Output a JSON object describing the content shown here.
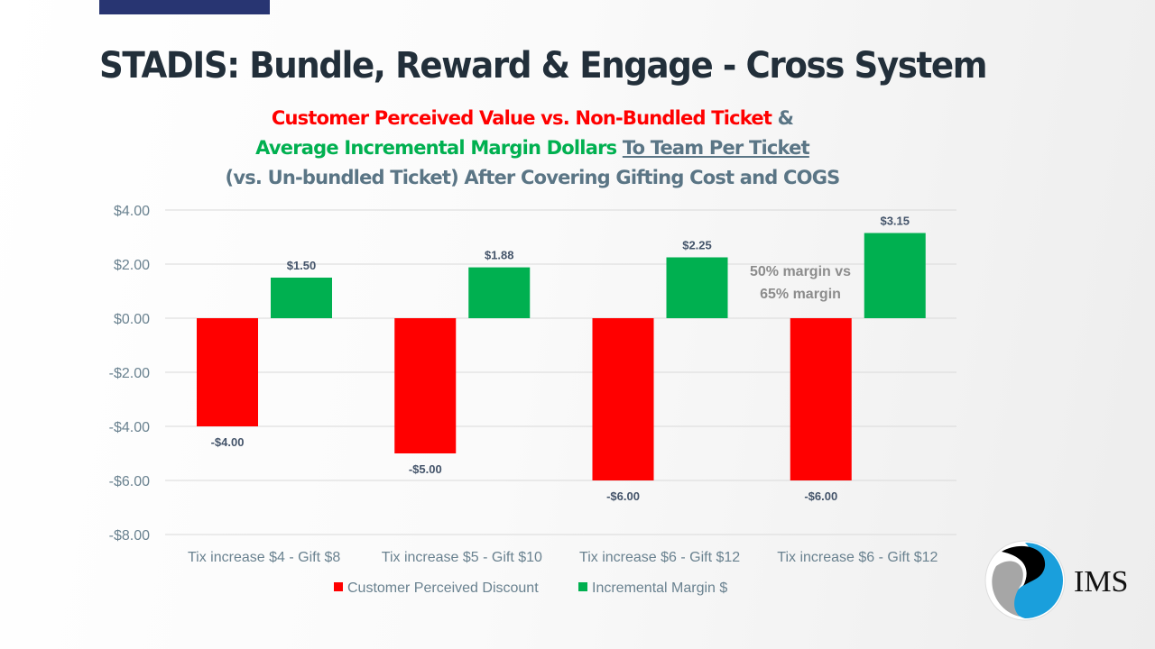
{
  "title": "STADIS: Bundle, Reward & Engage - Cross System",
  "subtitle": {
    "line1_red": "Customer Perceived Value vs. Non-Bundled Ticket",
    "line1_rest": " &",
    "line2_green": "Average Incremental Margin Dollars",
    "line2_underlined": "To Team Per Ticket",
    "line3": "(vs. Un-bundled Ticket) After Covering Gifting Cost and COGS"
  },
  "logo_text": "IMS",
  "chart_data": {
    "type": "bar",
    "categories": [
      "Tix increase $4 - Gift $8",
      "Tix increase $5 - Gift $10",
      "Tix increase $6 - Gift $12",
      "Tix increase $6 - Gift $12"
    ],
    "series": [
      {
        "name": "Customer Perceived Discount",
        "color": "#ff0000",
        "values": [
          -4.0,
          -5.0,
          -6.0,
          -6.0
        ],
        "labels": [
          "-$4.00",
          "-$5.00",
          "-$6.00",
          "-$6.00"
        ]
      },
      {
        "name": "Incremental Margin $",
        "color": "#00b050",
        "values": [
          1.5,
          1.88,
          2.25,
          3.15
        ],
        "labels": [
          "$1.50",
          "$1.88",
          "$2.25",
          "$3.15"
        ]
      }
    ],
    "ylim": [
      -8,
      4
    ],
    "yticks": [
      4,
      2,
      0,
      -2,
      -4,
      -6,
      -8
    ],
    "ytick_labels": [
      "$4.00",
      "$2.00",
      "$0.00",
      "-$2.00",
      "-$4.00",
      "-$6.00",
      "-$8.00"
    ],
    "grid": true,
    "legend": "bottom",
    "annotation": [
      "50% margin vs",
      "65% margin"
    ]
  }
}
